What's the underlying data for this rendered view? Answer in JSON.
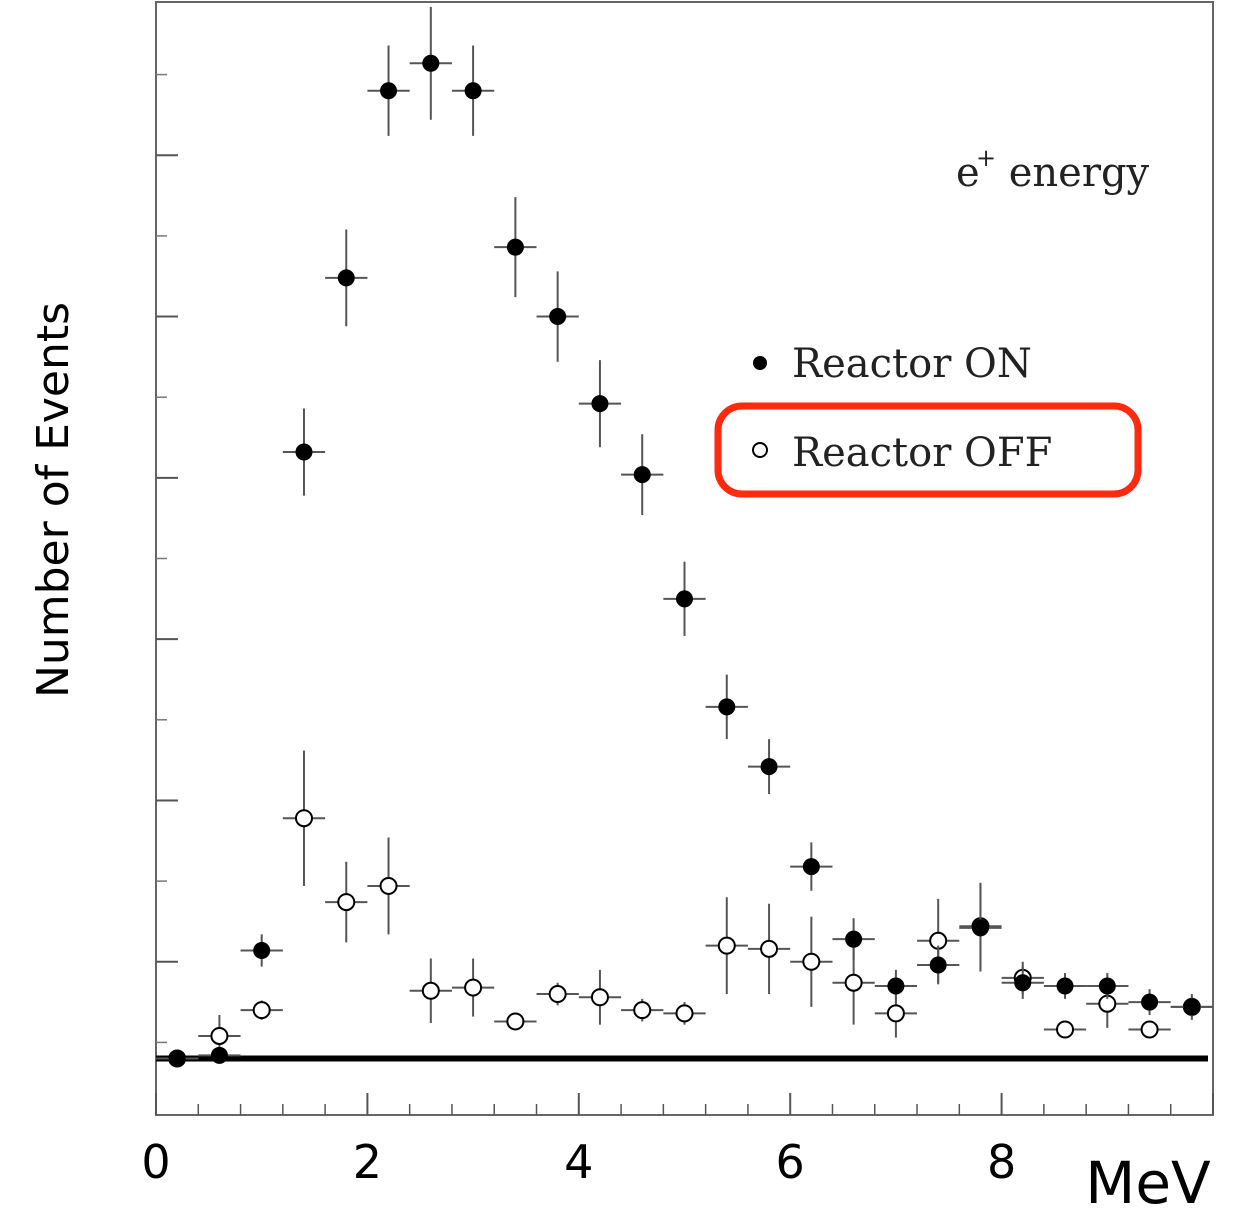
{
  "chart_data": {
    "type": "scatter",
    "title": "",
    "ylabel": "Number of Events",
    "xunit": "MeV",
    "annotation": {
      "base": "e",
      "sup": "+",
      "rest": " energy"
    },
    "xlim": [
      0,
      10
    ],
    "ylim": [
      -0.35,
      6.55
    ],
    "x_ticks": [
      0,
      2,
      4,
      6,
      8
    ],
    "x_tick_labels": [
      "0",
      "2",
      "4",
      "6",
      "8"
    ],
    "y_major_ticks": [
      0.6,
      1.6,
      2.6,
      3.6,
      4.6,
      5.6,
      6.6
    ],
    "y_minor_ticks": [
      0.1,
      1.1,
      2.1,
      3.1,
      4.1,
      5.1,
      6.1
    ],
    "baseline": 0,
    "bin_half_width": 0.2,
    "legend": {
      "placement": "top-right",
      "highlighted_entry": "Reactor OFF",
      "highlight_color": "#ff2a10"
    },
    "series": [
      {
        "name": "Reactor ON",
        "marker": "filled-circle",
        "x": [
          0.2,
          0.6,
          1.0,
          1.4,
          1.8,
          2.2,
          2.6,
          3.0,
          3.4,
          3.8,
          4.2,
          4.6,
          5.0,
          5.4,
          5.8,
          6.2,
          6.6,
          7.0,
          7.4,
          7.8,
          8.2,
          8.6,
          9.0,
          9.4,
          9.8
        ],
        "y": [
          0.0,
          0.02,
          0.67,
          3.76,
          4.84,
          6.0,
          6.17,
          6.0,
          5.03,
          4.6,
          4.06,
          3.62,
          2.85,
          2.18,
          1.81,
          1.19,
          0.74,
          0.45,
          0.58,
          0.81,
          0.47,
          0.45,
          0.45,
          0.35,
          0.32
        ],
        "yerr": [
          0.05,
          0.05,
          0.1,
          0.27,
          0.3,
          0.28,
          0.35,
          0.28,
          0.31,
          0.28,
          0.27,
          0.25,
          0.23,
          0.2,
          0.17,
          0.15,
          0.13,
          0.1,
          0.12,
          0.27,
          0.1,
          0.08,
          0.08,
          0.08,
          0.08
        ]
      },
      {
        "name": "Reactor OFF",
        "marker": "open-circle",
        "x": [
          0.2,
          0.6,
          1.0,
          1.4,
          1.8,
          2.2,
          2.6,
          3.0,
          3.4,
          3.8,
          4.2,
          4.6,
          5.0,
          5.4,
          5.8,
          6.2,
          6.6,
          7.0,
          7.4,
          7.8,
          8.2,
          8.6,
          9.0,
          9.4,
          9.8
        ],
        "y": [
          0.0,
          0.14,
          0.3,
          1.49,
          0.97,
          1.07,
          0.42,
          0.44,
          0.23,
          0.4,
          0.38,
          0.3,
          0.28,
          0.7,
          0.68,
          0.6,
          0.47,
          0.28,
          0.73,
          0.82,
          0.5,
          0.18,
          0.34,
          0.18,
          0.32
        ],
        "yerr": [
          0.05,
          0.13,
          0.06,
          0.42,
          0.25,
          0.3,
          0.2,
          0.18,
          0.05,
          0.07,
          0.17,
          0.07,
          0.07,
          0.3,
          0.28,
          0.28,
          0.26,
          0.15,
          0.26,
          0.27,
          0.1,
          0.05,
          0.15,
          0.05,
          0.06
        ]
      }
    ]
  }
}
